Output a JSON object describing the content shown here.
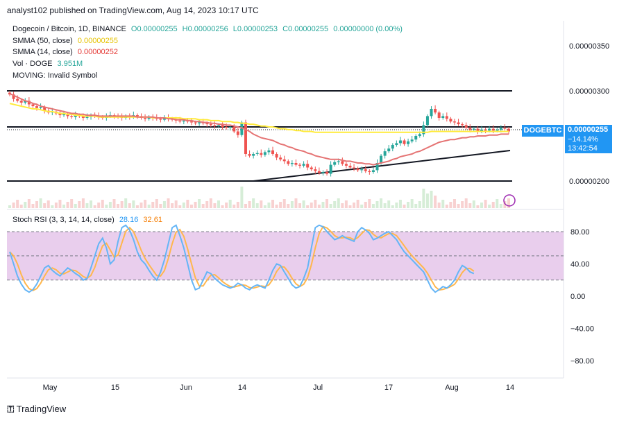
{
  "header": "analyst102 published on TradingView.com, Aug 14, 2023 10:17 UTC",
  "symbol_line": {
    "title": "Dogecoin / Bitcoin, 1D, BINANCE",
    "o": "O0.00000255",
    "h": "H0.00000256",
    "l": "L0.00000253",
    "c": "C0.00000255",
    "change": "0.00000000 (0.00%)"
  },
  "legends": [
    {
      "label": "SMMA (50, close)",
      "value": "0.00000255",
      "color": "#e6c300"
    },
    {
      "label": "SMMA (14, close)",
      "value": "0.00000252",
      "color": "#e53935"
    },
    {
      "label": "Vol · DOGE",
      "value": "3.951M",
      "color": "#26a69a"
    },
    {
      "label": "MOVING: Invalid Symbol",
      "value": "",
      "color": "#131722"
    }
  ],
  "stoch_legend": {
    "label": "Stoch RSI (3, 3, 14, 14, close)",
    "k": "28.16",
    "d": "32.61",
    "k_color": "#2196f3",
    "d_color": "#f57c00"
  },
  "price_tag": {
    "symbol": "DOGEBTC",
    "price": "0.00000255",
    "change": "−14.14%",
    "countdown": "13:42:54"
  },
  "brand": "TradingView",
  "chart_data": [
    {
      "type": "candlestick",
      "title": "Dogecoin / Bitcoin, 1D, BINANCE",
      "x_ticks": [
        "May",
        "15",
        "Jun",
        "14",
        "Jul",
        "17",
        "Aug",
        "14"
      ],
      "y_ticks": [
        "0.00000350",
        "0.00000300",
        "0.00000200"
      ],
      "ylim": [
        1.76e-06,
        3.68e-06
      ],
      "close": [
        296,
        291,
        289,
        287,
        289,
        285,
        283,
        281,
        282,
        278,
        276,
        277,
        275,
        273,
        274,
        272,
        271,
        273,
        272,
        270,
        271,
        273,
        272,
        271,
        270,
        272,
        273,
        272,
        271,
        270,
        272,
        271,
        273,
        272,
        270,
        269,
        271,
        270,
        269,
        268,
        270,
        269,
        268,
        267,
        266,
        267,
        266,
        265,
        264,
        265,
        264,
        263,
        262,
        261,
        262,
        260,
        259,
        260,
        255,
        251,
        265,
        230,
        228,
        230,
        231,
        229,
        232,
        234,
        230,
        226,
        224,
        222,
        219,
        220,
        218,
        217,
        219,
        215,
        213,
        211,
        209,
        210,
        208,
        218,
        221,
        222,
        219,
        217,
        215,
        214,
        212,
        213,
        211,
        210,
        212,
        220,
        228,
        233,
        236,
        240,
        242,
        245,
        241,
        244,
        246,
        250,
        252,
        262,
        272,
        280,
        276,
        270,
        272,
        269,
        266,
        265,
        263,
        262,
        259,
        257,
        258,
        255,
        257,
        256,
        258,
        256,
        257,
        259,
        258,
        255
      ],
      "smma50": [
        286,
        285,
        284,
        283,
        282,
        281,
        280,
        280,
        279,
        278,
        277,
        277,
        276,
        275,
        275,
        274,
        274,
        273,
        273,
        272,
        272,
        272,
        272,
        271,
        271,
        271,
        271,
        271,
        271,
        271,
        271,
        271,
        271,
        271,
        271,
        271,
        271,
        270,
        270,
        270,
        270,
        270,
        270,
        270,
        270,
        269,
        269,
        269,
        269,
        268,
        268,
        268,
        267,
        267,
        267,
        266,
        266,
        266,
        265,
        265,
        264,
        264,
        263,
        263,
        262,
        261,
        261,
        260,
        260,
        259,
        258,
        258,
        257,
        257,
        256,
        256,
        255,
        255,
        255,
        254,
        254,
        254,
        254,
        254,
        254,
        254,
        254,
        254,
        254,
        254,
        254,
        254,
        254,
        254,
        254,
        254,
        254,
        254,
        254,
        254,
        254,
        254,
        254,
        254,
        254,
        254,
        254,
        254,
        254,
        255,
        255,
        255,
        255,
        255,
        255,
        255,
        255,
        255,
        255,
        255,
        255,
        255,
        255,
        255,
        255,
        255,
        255,
        255,
        255,
        255
      ],
      "smma14": [
        297,
        295,
        293,
        291,
        289,
        288,
        286,
        285,
        283,
        282,
        281,
        280,
        279,
        278,
        277,
        276,
        275,
        275,
        274,
        274,
        273,
        273,
        273,
        272,
        272,
        272,
        272,
        272,
        272,
        272,
        272,
        272,
        272,
        271,
        271,
        271,
        271,
        271,
        270,
        270,
        270,
        269,
        269,
        268,
        268,
        268,
        267,
        267,
        266,
        266,
        265,
        265,
        264,
        264,
        263,
        263,
        262,
        262,
        261,
        260,
        259,
        257,
        255,
        252,
        250,
        248,
        247,
        246,
        245,
        243,
        241,
        240,
        238,
        237,
        235,
        234,
        233,
        231,
        230,
        228,
        227,
        226,
        225,
        224,
        224,
        224,
        223,
        222,
        222,
        221,
        220,
        220,
        219,
        219,
        218,
        219,
        220,
        221,
        222,
        224,
        225,
        227,
        228,
        229,
        230,
        232,
        233,
        235,
        237,
        239,
        241,
        243,
        244,
        245,
        246,
        246,
        247,
        248,
        248,
        249,
        249,
        250,
        250,
        250,
        251,
        251,
        251,
        252,
        252,
        252
      ],
      "stoch_k": [
        55,
        40,
        25,
        15,
        8,
        5,
        8,
        15,
        25,
        35,
        38,
        32,
        28,
        25,
        30,
        35,
        32,
        28,
        25,
        20,
        22,
        35,
        50,
        65,
        72,
        60,
        40,
        45,
        68,
        85,
        88,
        82,
        70,
        55,
        45,
        40,
        32,
        25,
        20,
        30,
        45,
        65,
        85,
        88,
        75,
        60,
        40,
        20,
        8,
        10,
        20,
        30,
        28,
        22,
        18,
        14,
        12,
        10,
        12,
        16,
        14,
        10,
        8,
        12,
        14,
        12,
        10,
        20,
        32,
        40,
        38,
        30,
        22,
        14,
        10,
        12,
        22,
        35,
        60,
        85,
        88,
        86,
        80,
        75,
        70,
        72,
        75,
        72,
        70,
        68,
        80,
        85,
        82,
        78,
        70,
        72,
        75,
        78,
        80,
        75,
        70,
        62,
        55,
        50,
        45,
        40,
        35,
        30,
        20,
        10,
        5,
        8,
        12,
        10,
        14,
        20,
        30,
        38,
        35,
        30,
        28
      ]
    }
  ]
}
